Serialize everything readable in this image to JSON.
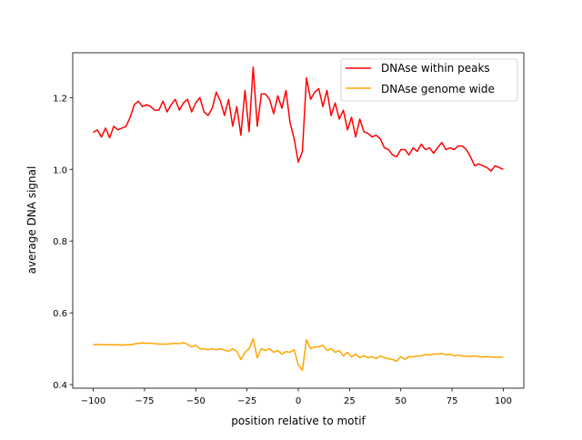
{
  "chart_data": {
    "type": "line",
    "title": "",
    "xlabel": "position relative to motif",
    "ylabel": "average DNA signal",
    "xlim": [
      -110,
      110
    ],
    "ylim": [
      0.39,
      1.325
    ],
    "xticks": [
      -100,
      -75,
      -50,
      -25,
      0,
      25,
      50,
      75,
      100
    ],
    "xtick_labels": [
      "−100",
      "−75",
      "−50",
      "−25",
      "0",
      "25",
      "50",
      "75",
      "100"
    ],
    "yticks": [
      0.4,
      0.6,
      0.8,
      1.0,
      1.2
    ],
    "ytick_labels": [
      "0.4",
      "0.6",
      "0.8",
      "1.0",
      "1.2"
    ],
    "grid": false,
    "legend_placement": "top-right",
    "x_start": -100,
    "x_step": 2,
    "series": [
      {
        "name": "DNAse within peaks",
        "color": "#ff0000",
        "values": [
          1.103,
          1.11,
          1.09,
          1.115,
          1.088,
          1.12,
          1.11,
          1.115,
          1.12,
          1.145,
          1.18,
          1.19,
          1.175,
          1.18,
          1.175,
          1.165,
          1.165,
          1.19,
          1.16,
          1.18,
          1.195,
          1.165,
          1.185,
          1.195,
          1.16,
          1.185,
          1.2,
          1.16,
          1.15,
          1.17,
          1.215,
          1.19,
          1.15,
          1.195,
          1.12,
          1.175,
          1.095,
          1.22,
          1.105,
          1.285,
          1.12,
          1.21,
          1.21,
          1.195,
          1.155,
          1.205,
          1.17,
          1.22,
          1.13,
          1.085,
          1.02,
          1.05,
          1.255,
          1.195,
          1.215,
          1.225,
          1.175,
          1.22,
          1.15,
          1.185,
          1.14,
          1.165,
          1.11,
          1.145,
          1.09,
          1.14,
          1.105,
          1.1,
          1.09,
          1.095,
          1.085,
          1.06,
          1.055,
          1.04,
          1.035,
          1.055,
          1.055,
          1.04,
          1.06,
          1.05,
          1.07,
          1.055,
          1.06,
          1.045,
          1.06,
          1.075,
          1.055,
          1.06,
          1.055,
          1.065,
          1.065,
          1.055,
          1.035,
          1.01,
          1.015,
          1.01,
          1.005,
          0.995,
          1.01,
          1.005,
          1.0
        ]
      },
      {
        "name": "DNAse genome wide",
        "color": "#ffa500",
        "values": [
          0.511,
          0.512,
          0.511,
          0.511,
          0.511,
          0.511,
          0.511,
          0.51,
          0.511,
          0.511,
          0.513,
          0.515,
          0.516,
          0.515,
          0.515,
          0.514,
          0.513,
          0.513,
          0.513,
          0.514,
          0.515,
          0.514,
          0.517,
          0.512,
          0.505,
          0.51,
          0.5,
          0.5,
          0.497,
          0.5,
          0.497,
          0.5,
          0.496,
          0.493,
          0.5,
          0.493,
          0.47,
          0.49,
          0.5,
          0.528,
          0.474,
          0.5,
          0.495,
          0.5,
          0.49,
          0.495,
          0.485,
          0.492,
          0.49,
          0.497,
          0.455,
          0.44,
          0.525,
          0.5,
          0.505,
          0.505,
          0.51,
          0.495,
          0.5,
          0.49,
          0.495,
          0.48,
          0.49,
          0.477,
          0.485,
          0.475,
          0.48,
          0.475,
          0.478,
          0.472,
          0.48,
          0.475,
          0.472,
          0.47,
          0.465,
          0.478,
          0.47,
          0.478,
          0.477,
          0.48,
          0.48,
          0.484,
          0.482,
          0.485,
          0.485,
          0.487,
          0.483,
          0.485,
          0.48,
          0.482,
          0.48,
          0.479,
          0.478,
          0.48,
          0.478,
          0.477,
          0.478,
          0.477,
          0.476,
          0.477,
          0.476
        ]
      }
    ]
  }
}
